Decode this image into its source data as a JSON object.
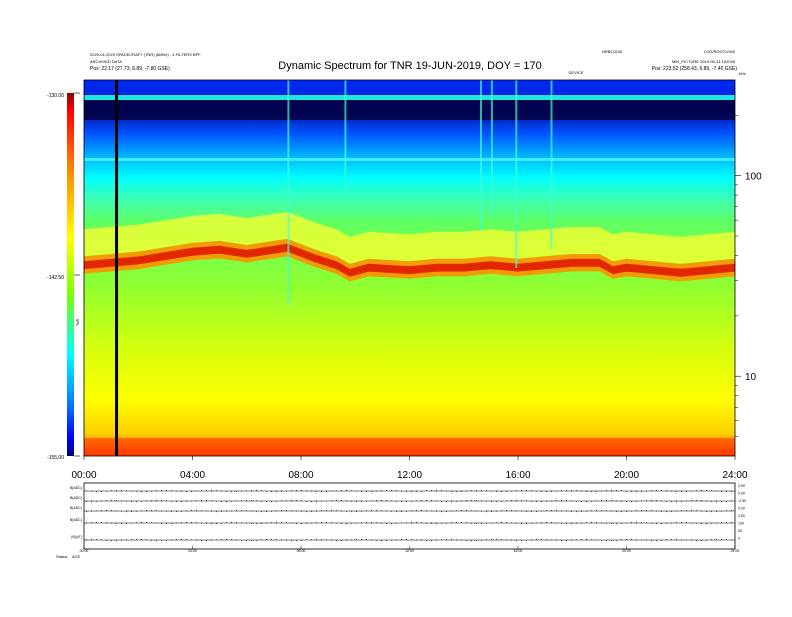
{
  "header": {
    "title": "Dynamic Spectrum for TNR 19-JUN-2019, DOY = 170",
    "meta_left_1": "2020-01-2023 SPACECRAFT (TNR) (6MHz) - 4 FILTERS BPF",
    "meta_left_2": "ARCHIVED DATA",
    "meta_left_3": "Pos:   22.17 (27.73, 6.89, -7.80 GSE)",
    "meta_right_top_1": "NRBC0240",
    "meta_right_top_2": "LOG/ROOT/v340",
    "meta_right_mid": "MIN_PICTURE 2019-06-31 102039",
    "meta_right_pos": "Pos:   223.52 (258.43, 6.89, -7.40 GSE)",
    "center_tag": "DEVICE",
    "corner_tag": "kHz"
  },
  "colorbar": {
    "ticks": [
      "-130.00",
      "-142.50",
      "-155.00"
    ],
    "unit_label": "TNR",
    "colors": [
      "#8b0000",
      "#ff0000",
      "#ff8000",
      "#ffff00",
      "#80ff00",
      "#00ffff",
      "#0080ff",
      "#0000ff",
      "#000080"
    ]
  },
  "chart_data": [
    {
      "type": "heatmap",
      "title": "Dynamic Spectrum for TNR 19-JUN-2019, DOY = 170",
      "x_ticks": [
        "00:00",
        "04:00",
        "08:00",
        "12:00",
        "16:00",
        "20:00",
        "24:00"
      ],
      "xlim_hours": [
        0,
        24
      ],
      "y_scale": "log",
      "y_tick_labels": [
        "100",
        "10"
      ],
      "y_ticks_khz": [
        100,
        10
      ],
      "ylim_khz": [
        4,
        300
      ],
      "color_range": [
        -155.0,
        -130.0
      ],
      "plasma_line_khz": [
        [
          0,
          36
        ],
        [
          2,
          38
        ],
        [
          4,
          42
        ],
        [
          5,
          43
        ],
        [
          6,
          41
        ],
        [
          7.5,
          44
        ],
        [
          8.5,
          39
        ],
        [
          9.3,
          36
        ],
        [
          9.8,
          33
        ],
        [
          10.5,
          35
        ],
        [
          12,
          34
        ],
        [
          13,
          35
        ],
        [
          14,
          35
        ],
        [
          15,
          36
        ],
        [
          16,
          35
        ],
        [
          17,
          36
        ],
        [
          18,
          37
        ],
        [
          19,
          37
        ],
        [
          19.5,
          34
        ],
        [
          20,
          35
        ],
        [
          21,
          34
        ],
        [
          22,
          33
        ],
        [
          23,
          34
        ],
        [
          24,
          35
        ]
      ],
      "data_gap_marker_hour": 1.2
    },
    {
      "type": "line",
      "title": "",
      "panel_labels": [
        "B(ADC)",
        "B(ADC)",
        "B(ADC)",
        "N(ADC)",
        "|B|(nT)"
      ],
      "right_scale_labels": [
        "2.50",
        "0.00",
        "-2.50",
        "0.00",
        "2.50",
        "100",
        "50",
        "0"
      ],
      "x_ticks": [
        "00:00",
        "04:00",
        "08:00",
        "12:00",
        "16:00",
        "20:00",
        "24:00"
      ],
      "footer_label": "Status",
      "footer_value": "ACE"
    }
  ]
}
